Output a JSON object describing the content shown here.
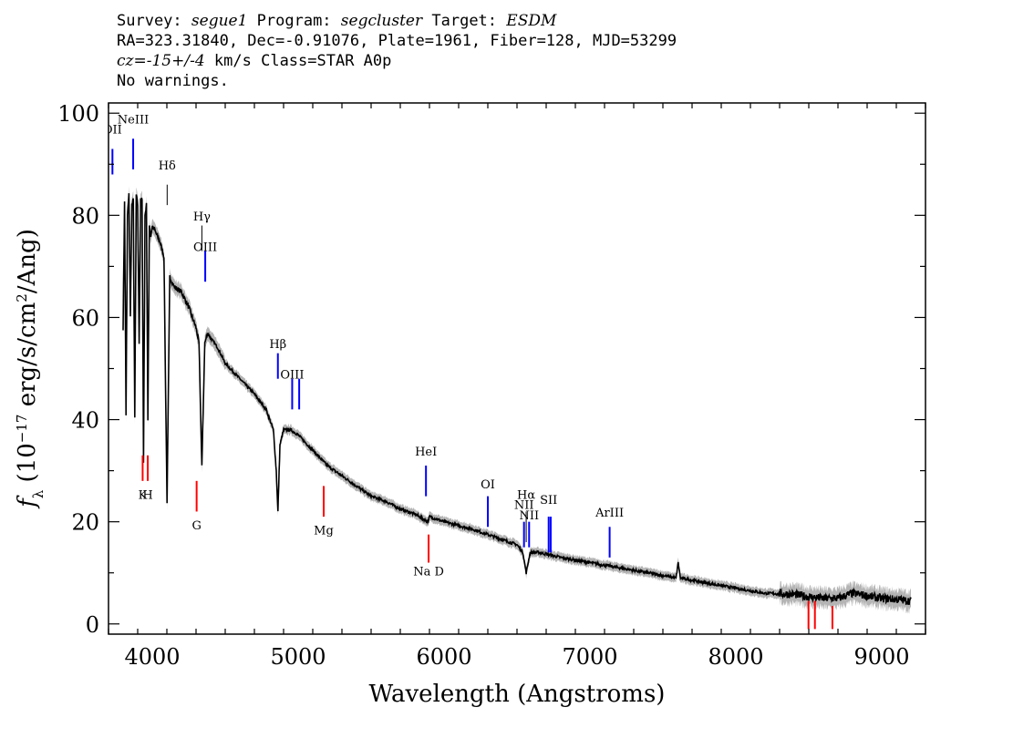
{
  "header": {
    "line1": {
      "survey_label": "Survey:",
      "survey": "segue1",
      "program_label": "Program:",
      "program": "segcluster",
      "target_label": "Target:",
      "target": "ESDM"
    },
    "line2": "RA=323.31840, Dec=-0.91076, Plate=1961, Fiber=128, MJD=53299",
    "line3": {
      "cz": "cz=-15+/-4",
      "units": "km/s",
      "class": "Class=STAR A0p"
    },
    "line4": "No warnings."
  },
  "colors": {
    "spectrum": "#000000",
    "error": "#b4b4b4",
    "emission": "#0000ff",
    "absorption": "#ff0000",
    "balmer": "#000000"
  },
  "chart_data": {
    "type": "line",
    "xlabel": "Wavelength (Angstroms)",
    "ylabel": "f_λ (10^-17 erg/s/cm^2/Ang)",
    "xlim": [
      3700,
      9300
    ],
    "ylim": [
      -2,
      102
    ],
    "x_ticks": [
      4000,
      5000,
      6000,
      7000,
      8000,
      9000
    ],
    "y_ticks": [
      0,
      20,
      40,
      60,
      80,
      100
    ],
    "grid": false,
    "series": [
      {
        "x": [
          3800,
          3810,
          3820,
          3830,
          3840,
          3850,
          3860,
          3870,
          3880,
          3890,
          3900,
          3910,
          3920,
          3930,
          3940,
          3950,
          3960,
          3970,
          3980,
          3990,
          4000,
          4050,
          4080,
          4101,
          4120,
          4150,
          4200,
          4250,
          4300,
          4320,
          4340,
          4360,
          4380,
          4400,
          4450,
          4500,
          4600,
          4700,
          4780,
          4830,
          4850,
          4861,
          4875,
          4900,
          4950,
          5000,
          5100,
          5200,
          5300,
          5400,
          5500,
          5600,
          5700,
          5800,
          5890,
          5900,
          6000,
          6200,
          6400,
          6500,
          6540,
          6563,
          6590,
          6650,
          6800,
          7000,
          7200,
          7400,
          7590,
          7605,
          7620,
          7800,
          8000,
          8200,
          8400,
          8500,
          8600,
          8700,
          8800,
          8900,
          9000,
          9100,
          9200
        ],
        "y": [
          58,
          83,
          41,
          80,
          84,
          60,
          82,
          83,
          40,
          84,
          82,
          55,
          83,
          83,
          32,
          80,
          82,
          40,
          78,
          76,
          78,
          75,
          72,
          24,
          68,
          66,
          65,
          62,
          58,
          55,
          31,
          55,
          57,
          56,
          54,
          51,
          48,
          45,
          42,
          38,
          30,
          22,
          35,
          38,
          38,
          37,
          34,
          31,
          29,
          27,
          25,
          24,
          22.5,
          21.5,
          20,
          21,
          20,
          18.5,
          16.5,
          15.5,
          14,
          10,
          14,
          14,
          13,
          12,
          11,
          10,
          9,
          12,
          9,
          8,
          7,
          6,
          5.8,
          5.3,
          5,
          5,
          6,
          5.5,
          5,
          4.8,
          4.5
        ]
      }
    ],
    "line_markers": [
      {
        "label": "OII",
        "wavelength": 3727,
        "color": "blue",
        "pos": "above",
        "label_y": 96,
        "bar_top": 93,
        "bar_bottom": 88
      },
      {
        "label": "NeIII",
        "wavelength": 3869,
        "color": "blue",
        "pos": "above",
        "label_y": 98,
        "bar_top": 95,
        "bar_bottom": 89
      },
      {
        "label": "Hδ",
        "wavelength": 4102,
        "color": "black",
        "pos": "above",
        "label_y": 89,
        "bar_top": 86,
        "bar_bottom": 82
      },
      {
        "label": "Hγ",
        "wavelength": 4340,
        "color": "black",
        "pos": "above",
        "label_y": 79,
        "bar_top": 78,
        "bar_bottom": 73
      },
      {
        "label": "OIII",
        "wavelength": 4363,
        "color": "blue",
        "pos": "above",
        "label_y": 73,
        "bar_top": 73,
        "bar_bottom": 67
      },
      {
        "label": "Hβ",
        "wavelength": 4861,
        "color": "blue",
        "pos": "above",
        "label_y": 54,
        "bar_top": 53,
        "bar_bottom": 48
      },
      {
        "label": "OIII",
        "wavelength": 4959,
        "color": "blue",
        "pos": "above",
        "label_y": 48,
        "bar_top": 48,
        "bar_bottom": 42
      },
      {
        "label": "",
        "wavelength": 5007,
        "color": "blue",
        "pos": "above",
        "bar_top": 48,
        "bar_bottom": 42
      },
      {
        "label": "HeI",
        "wavelength": 5876,
        "color": "blue",
        "pos": "above",
        "label_y": 33,
        "bar_top": 31,
        "bar_bottom": 25
      },
      {
        "label": "OI",
        "wavelength": 6300,
        "color": "blue",
        "pos": "above",
        "label_y": 26.5,
        "bar_top": 25,
        "bar_bottom": 19
      },
      {
        "label": "NII",
        "wavelength": 6548,
        "color": "blue",
        "pos": "above",
        "label_y": 22.5,
        "bar_top": 20,
        "bar_bottom": 15
      },
      {
        "label": "Hα",
        "wavelength": 6563,
        "color": "black",
        "pos": "above",
        "label_y": 24.5,
        "bar_top": 22,
        "bar_bottom": 16
      },
      {
        "label": "NII",
        "wavelength": 6583,
        "color": "blue",
        "pos": "above",
        "label_y": 20.5,
        "bar_top": 20,
        "bar_bottom": 15
      },
      {
        "label": "SII",
        "wavelength": 6717,
        "color": "blue",
        "pos": "above",
        "label_y": 23.5,
        "bar_top": 21,
        "bar_bottom": 14
      },
      {
        "label": "",
        "wavelength": 6731,
        "color": "blue",
        "pos": "above",
        "bar_top": 21,
        "bar_bottom": 14
      },
      {
        "label": "ArIII",
        "wavelength": 7135,
        "color": "blue",
        "pos": "above",
        "label_y": 21,
        "bar_top": 19,
        "bar_bottom": 13
      },
      {
        "label": "K",
        "wavelength": 3934,
        "color": "red",
        "pos": "below",
        "label_y": 24.5,
        "bar_top": 33,
        "bar_bottom": 28
      },
      {
        "label": "H",
        "wavelength": 3969,
        "color": "red",
        "pos": "below",
        "label_y": 24.5,
        "bar_top": 33,
        "bar_bottom": 28
      },
      {
        "label": "G",
        "wavelength": 4304,
        "color": "red",
        "pos": "below",
        "label_y": 18.5,
        "bar_top": 28,
        "bar_bottom": 22
      },
      {
        "label": "Mg",
        "wavelength": 5175,
        "color": "red",
        "pos": "below",
        "label_y": 17.5,
        "bar_top": 27,
        "bar_bottom": 21
      },
      {
        "label": "Na D",
        "wavelength": 5894,
        "color": "red",
        "pos": "below",
        "label_y": 9.5,
        "bar_top": 17.5,
        "bar_bottom": 12
      },
      {
        "label": "",
        "wavelength": 8498,
        "color": "red",
        "pos": "below",
        "bar_top": 4.5,
        "bar_bottom": -1
      },
      {
        "label": "",
        "wavelength": 8542,
        "color": "red",
        "pos": "below",
        "bar_top": 4.5,
        "bar_bottom": -1
      },
      {
        "label": "",
        "wavelength": 8662,
        "color": "red",
        "pos": "below",
        "bar_top": 3.5,
        "bar_bottom": -1
      }
    ]
  }
}
